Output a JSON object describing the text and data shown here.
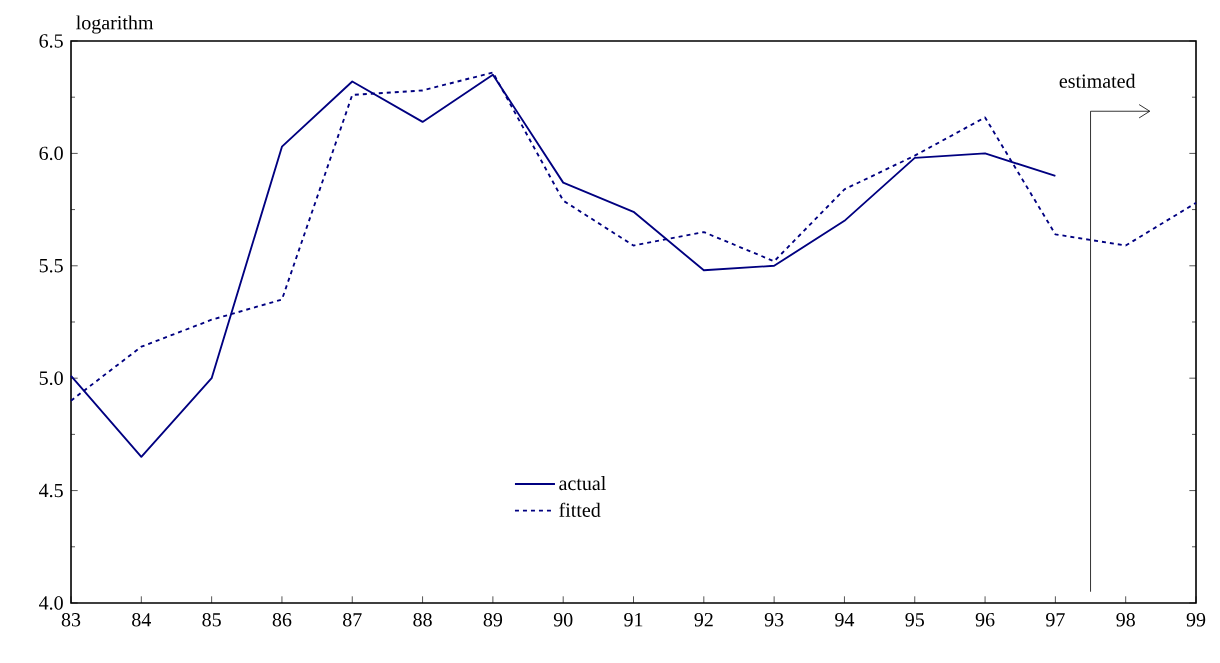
{
  "chart_data": {
    "type": "line",
    "ylabel": "logarithm",
    "x": [
      83,
      84,
      85,
      86,
      87,
      88,
      89,
      90,
      91,
      92,
      93,
      94,
      95,
      96,
      97,
      98,
      99
    ],
    "series": [
      {
        "name": "actual",
        "color": "#000080",
        "line_style": "solid",
        "values": [
          5.01,
          4.65,
          5.0,
          6.03,
          6.32,
          6.14,
          6.35,
          5.87,
          5.74,
          5.48,
          5.5,
          5.7,
          5.98,
          6.0,
          5.9,
          null,
          null
        ]
      },
      {
        "name": "fitted",
        "color": "#000080",
        "line_style": "dotted",
        "values": [
          4.9,
          5.14,
          5.26,
          5.35,
          6.26,
          6.28,
          6.36,
          5.79,
          5.59,
          5.65,
          5.52,
          5.84,
          5.99,
          6.16,
          5.64,
          5.59,
          5.78
        ]
      }
    ],
    "xlim": [
      83,
      99
    ],
    "xticks": [
      83,
      84,
      85,
      86,
      87,
      88,
      89,
      90,
      91,
      92,
      93,
      94,
      95,
      96,
      97,
      98,
      99
    ],
    "ylim": [
      4.0,
      6.5
    ],
    "yticks": [
      {
        "value": 4.0,
        "label": "4.0"
      },
      {
        "value": 4.5,
        "label": "4.5"
      },
      {
        "value": 5.0,
        "label": "5.0"
      },
      {
        "value": 5.5,
        "label": "5.5"
      },
      {
        "value": 6.0,
        "label": "6.0"
      },
      {
        "value": 6.5,
        "label": "6.5"
      }
    ],
    "ref_lines": [
      {
        "axis": "x",
        "value": 97.5,
        "label": "estimated",
        "color": "#000000"
      }
    ],
    "grid": false,
    "legend": "bottom",
    "marker": "none"
  }
}
